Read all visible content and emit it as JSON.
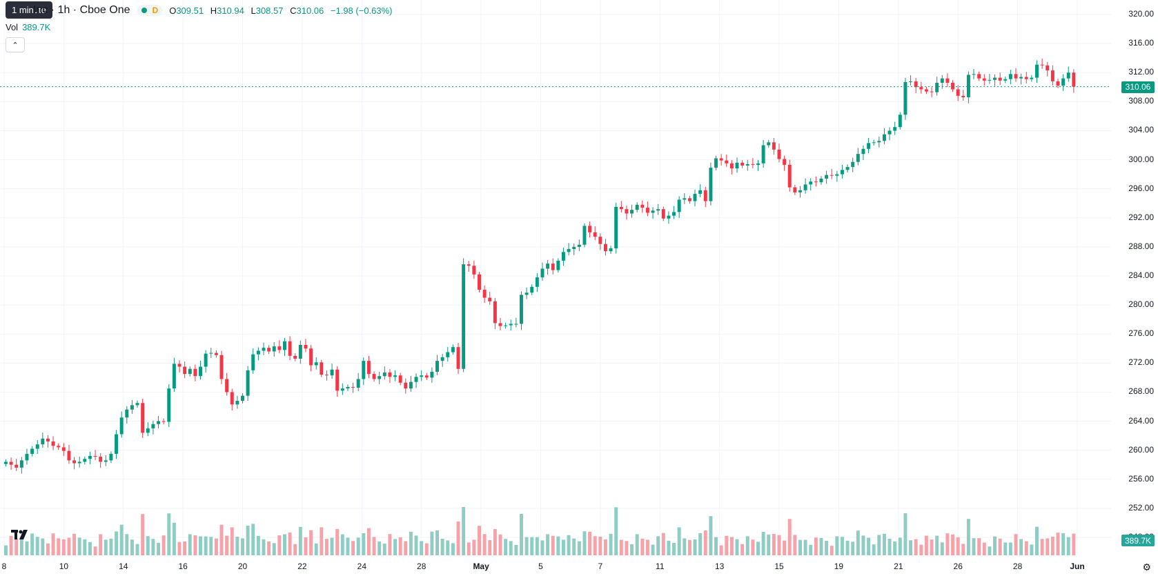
{
  "legend": {
    "symbol": "Inc · 1h · Cboe One",
    "interval_tooltip": "1 minute",
    "delay_tag": "D",
    "open_key": "O",
    "open": "309.51",
    "high_key": "H",
    "high": "310.94",
    "low_key": "L",
    "low": "308.57",
    "close_key": "C",
    "close": "310.06",
    "change": "−1.98 (−0.63%)"
  },
  "volume_row": {
    "label": "Vol",
    "value": "389.7K"
  },
  "price_axis": [
    "320.00",
    "316.00",
    "312.00",
    "308.00",
    "304.00",
    "300.00",
    "296.00",
    "292.00",
    "288.00",
    "284.00",
    "280.00",
    "276.00",
    "272.00",
    "268.00",
    "264.00",
    "260.00",
    "256.00",
    "252.00",
    "248.00"
  ],
  "last_price": "310.06",
  "last_volume": "389.7K",
  "time_axis": [
    {
      "label": "8",
      "bold": false
    },
    {
      "label": "10",
      "bold": false
    },
    {
      "label": "14",
      "bold": false
    },
    {
      "label": "16",
      "bold": false
    },
    {
      "label": "20",
      "bold": false
    },
    {
      "label": "22",
      "bold": false
    },
    {
      "label": "24",
      "bold": false
    },
    {
      "label": "28",
      "bold": false
    },
    {
      "label": "May",
      "bold": true
    },
    {
      "label": "5",
      "bold": false
    },
    {
      "label": "7",
      "bold": false
    },
    {
      "label": "11",
      "bold": false
    },
    {
      "label": "13",
      "bold": false
    },
    {
      "label": "15",
      "bold": false
    },
    {
      "label": "19",
      "bold": false
    },
    {
      "label": "21",
      "bold": false
    },
    {
      "label": "26",
      "bold": false
    },
    {
      "label": "28",
      "bold": false
    },
    {
      "label": "Jun",
      "bold": true
    }
  ],
  "colors": {
    "up": "#089981",
    "down": "#f23645",
    "vol_up": "#8fcdc4",
    "vol_down": "#f5a3a9",
    "grid": "#f0f3fa"
  },
  "chart_data": {
    "type": "candlestick",
    "ylim": [
      246,
      322
    ],
    "close_series": [
      258.4,
      258,
      257.6,
      258.6,
      259.5,
      260.2,
      260.8,
      261.6,
      261.2,
      260.6,
      260.4,
      259.9,
      258.6,
      258.2,
      258.4,
      258.8,
      259.2,
      259.1,
      258.4,
      258.6,
      259.5,
      262.2,
      264.5,
      265.6,
      266.2,
      266.5,
      262.4,
      263,
      263.6,
      264,
      263.9,
      268.5,
      271.9,
      271.5,
      270.5,
      271.2,
      270.2,
      271.5,
      273.3,
      273.4,
      273.1,
      269.8,
      268,
      266.3,
      266.8,
      267.5,
      271,
      273.2,
      273.7,
      274.1,
      273.6,
      274.3,
      273.8,
      275,
      273,
      272.6,
      274.5,
      274,
      271.7,
      272.1,
      270.4,
      270.3,
      271.1,
      268.2,
      268.5,
      268.7,
      268.6,
      269.8,
      272.3,
      270.5,
      269.8,
      270.2,
      270.7,
      270.1,
      270.3,
      269.3,
      268.5,
      269.4,
      270.1,
      270.3,
      270,
      270.8,
      272.3,
      272.8,
      273.5,
      274.2,
      271.2,
      285.6,
      285.4,
      284.2,
      282.1,
      281,
      280.5,
      277.5,
      277.1,
      277.2,
      277.4,
      277.4,
      281.4,
      281.7,
      282.5,
      283.8,
      285,
      285.7,
      284.8,
      286.1,
      287.3,
      287.7,
      288,
      288.3,
      290.9,
      290,
      289.4,
      288.4,
      287.4,
      287.8,
      293.5,
      293.2,
      292.6,
      293.1,
      293.8,
      293.4,
      292.7,
      293,
      293.2,
      291.9,
      292.3,
      292.8,
      294.5,
      294.7,
      294.3,
      295.3,
      295.8,
      294.3,
      298.9,
      300.2,
      299.9,
      299.5,
      298.8,
      299.6,
      299.2,
      299.4,
      299.3,
      299.5,
      302,
      302.4,
      301.4,
      300.1,
      299.3,
      296.2,
      295.5,
      295.8,
      296.6,
      297,
      296.9,
      297.4,
      297.9,
      297.8,
      298,
      298.6,
      299,
      299.7,
      300.8,
      301.5,
      302.3,
      302.4,
      302.6,
      303.5,
      304,
      304.5,
      306.2,
      310.7,
      310.8,
      310,
      309.7,
      309.4,
      309.3,
      310.6,
      311.2,
      310.6,
      309.7,
      308.8,
      308.6,
      311.7,
      311.8,
      311.2,
      310.9,
      311,
      311.3,
      310.9,
      311.1,
      311.8,
      311.2,
      311.4,
      311.1,
      311.3,
      313.1,
      313,
      312.3,
      310.8,
      310.2,
      311.2,
      312,
      310.06
    ]
  }
}
